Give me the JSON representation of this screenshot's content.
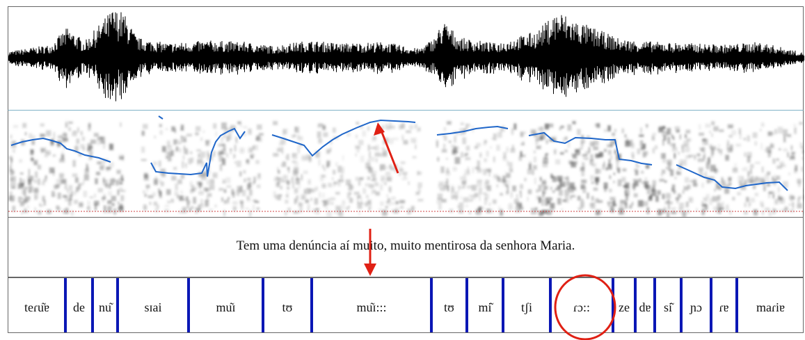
{
  "sentence": "Tem uma denúncia aí muito, muito mentirosa da senhora Maria.",
  "segments": [
    "teɾu͂ɐ",
    "de",
    "nu͂",
    "sɪai",
    "mu͂ɪ",
    "tʊ",
    "mu͂ɪ:::",
    "tʊ",
    "mi͂",
    "tʃi",
    "ɾɔ::",
    "ze",
    "dɐ",
    "si͂",
    "ɲɔ",
    "ɾɐ",
    "maɾiɐ"
  ],
  "colors": {
    "pitch": "#1f66c9",
    "boundary": "#0a17b5",
    "annotation": "#e02014",
    "waveform": "#000000"
  }
}
